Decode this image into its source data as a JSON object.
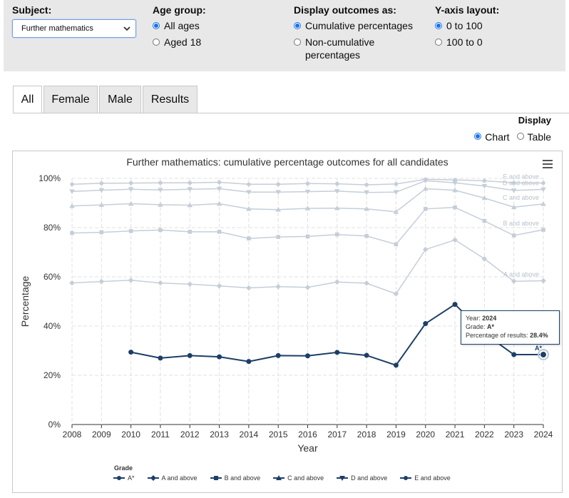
{
  "filters": {
    "subject": {
      "label": "Subject:",
      "value": "Further mathematics"
    },
    "age_group": {
      "label": "Age group:",
      "options": [
        {
          "label": "All ages",
          "selected": true
        },
        {
          "label": "Aged 18",
          "selected": false
        }
      ]
    },
    "display_outcomes": {
      "label": "Display outcomes as:",
      "options": [
        {
          "label": "Cumulative percentages",
          "selected": true
        },
        {
          "label": "Non-cumulative percentages",
          "selected": false
        }
      ]
    },
    "y_axis_layout": {
      "label": "Y-axis layout:",
      "options": [
        {
          "label": "0 to 100",
          "selected": true
        },
        {
          "label": "100 to 0",
          "selected": false
        }
      ]
    }
  },
  "tabs": [
    {
      "label": "All",
      "active": true
    },
    {
      "label": "Female",
      "active": false
    },
    {
      "label": "Male",
      "active": false
    },
    {
      "label": "Results",
      "active": false
    }
  ],
  "display": {
    "label": "Display",
    "options": [
      {
        "label": "Chart",
        "selected": true
      },
      {
        "label": "Table",
        "selected": false
      }
    ]
  },
  "tooltip": {
    "year_label": "Year:",
    "year": "2024",
    "grade_label": "Grade:",
    "grade": "A*",
    "pct_label": "Percentage of results:",
    "pct": "28.4%"
  },
  "colors": {
    "active_series": "#1c3f66",
    "faded_series": "#c5ced8",
    "accent": "#1a73e8"
  },
  "chart_data": {
    "type": "line",
    "title": "Further mathematics: cumulative percentage outcomes for all candidates",
    "xlabel": "Year",
    "ylabel": "Percentage",
    "ylim": [
      0,
      100
    ],
    "yticks": [
      "0%",
      "20%",
      "40%",
      "60%",
      "80%",
      "100%"
    ],
    "x": [
      2008,
      2009,
      2010,
      2011,
      2012,
      2013,
      2014,
      2015,
      2016,
      2017,
      2018,
      2019,
      2020,
      2021,
      2022,
      2023,
      2024
    ],
    "legend_title": "Grade",
    "grid": true,
    "series": [
      {
        "name": "A*",
        "highlighted": true,
        "end_label": "A*",
        "marker": "circle",
        "values": [
          null,
          null,
          29.4,
          27.0,
          28.0,
          27.5,
          25.6,
          28.0,
          27.9,
          29.3,
          28.1,
          24.1,
          41.0,
          48.8,
          37.0,
          28.4,
          28.4
        ]
      },
      {
        "name": "A and above",
        "highlighted": false,
        "end_label": "A and above",
        "marker": "diamond",
        "values": [
          57.5,
          58.1,
          58.6,
          57.5,
          57.0,
          56.3,
          55.5,
          56.0,
          55.7,
          57.9,
          57.4,
          53.1,
          71.1,
          75.0,
          67.3,
          58.2,
          58.4
        ]
      },
      {
        "name": "B and above",
        "highlighted": false,
        "end_label": "B and above",
        "marker": "square",
        "values": [
          77.8,
          78.1,
          78.6,
          79.0,
          78.3,
          78.3,
          75.6,
          76.2,
          76.4,
          77.2,
          76.6,
          73.2,
          87.6,
          88.2,
          82.7,
          76.8,
          79.1
        ]
      },
      {
        "name": "C and above",
        "highlighted": false,
        "end_label": "C and above",
        "marker": "triangle",
        "values": [
          88.8,
          89.2,
          89.7,
          89.3,
          89.1,
          89.7,
          87.6,
          87.3,
          87.8,
          87.9,
          87.6,
          86.4,
          95.8,
          95.2,
          92.0,
          88.3,
          89.6
        ]
      },
      {
        "name": "D and above",
        "highlighted": false,
        "end_label": "D and above",
        "marker": "triangle-down",
        "values": [
          94.7,
          95.2,
          95.6,
          95.3,
          95.6,
          95.8,
          94.4,
          94.4,
          94.6,
          94.8,
          94.3,
          94.4,
          99.0,
          98.2,
          96.9,
          95.1,
          95.5
        ]
      },
      {
        "name": "E and above",
        "highlighted": false,
        "end_label": "E and above",
        "marker": "circle",
        "values": [
          97.6,
          98.0,
          98.1,
          98.2,
          98.2,
          98.4,
          97.6,
          97.6,
          97.9,
          97.8,
          97.4,
          97.7,
          99.6,
          99.4,
          99.0,
          98.2,
          98.1
        ]
      }
    ]
  }
}
